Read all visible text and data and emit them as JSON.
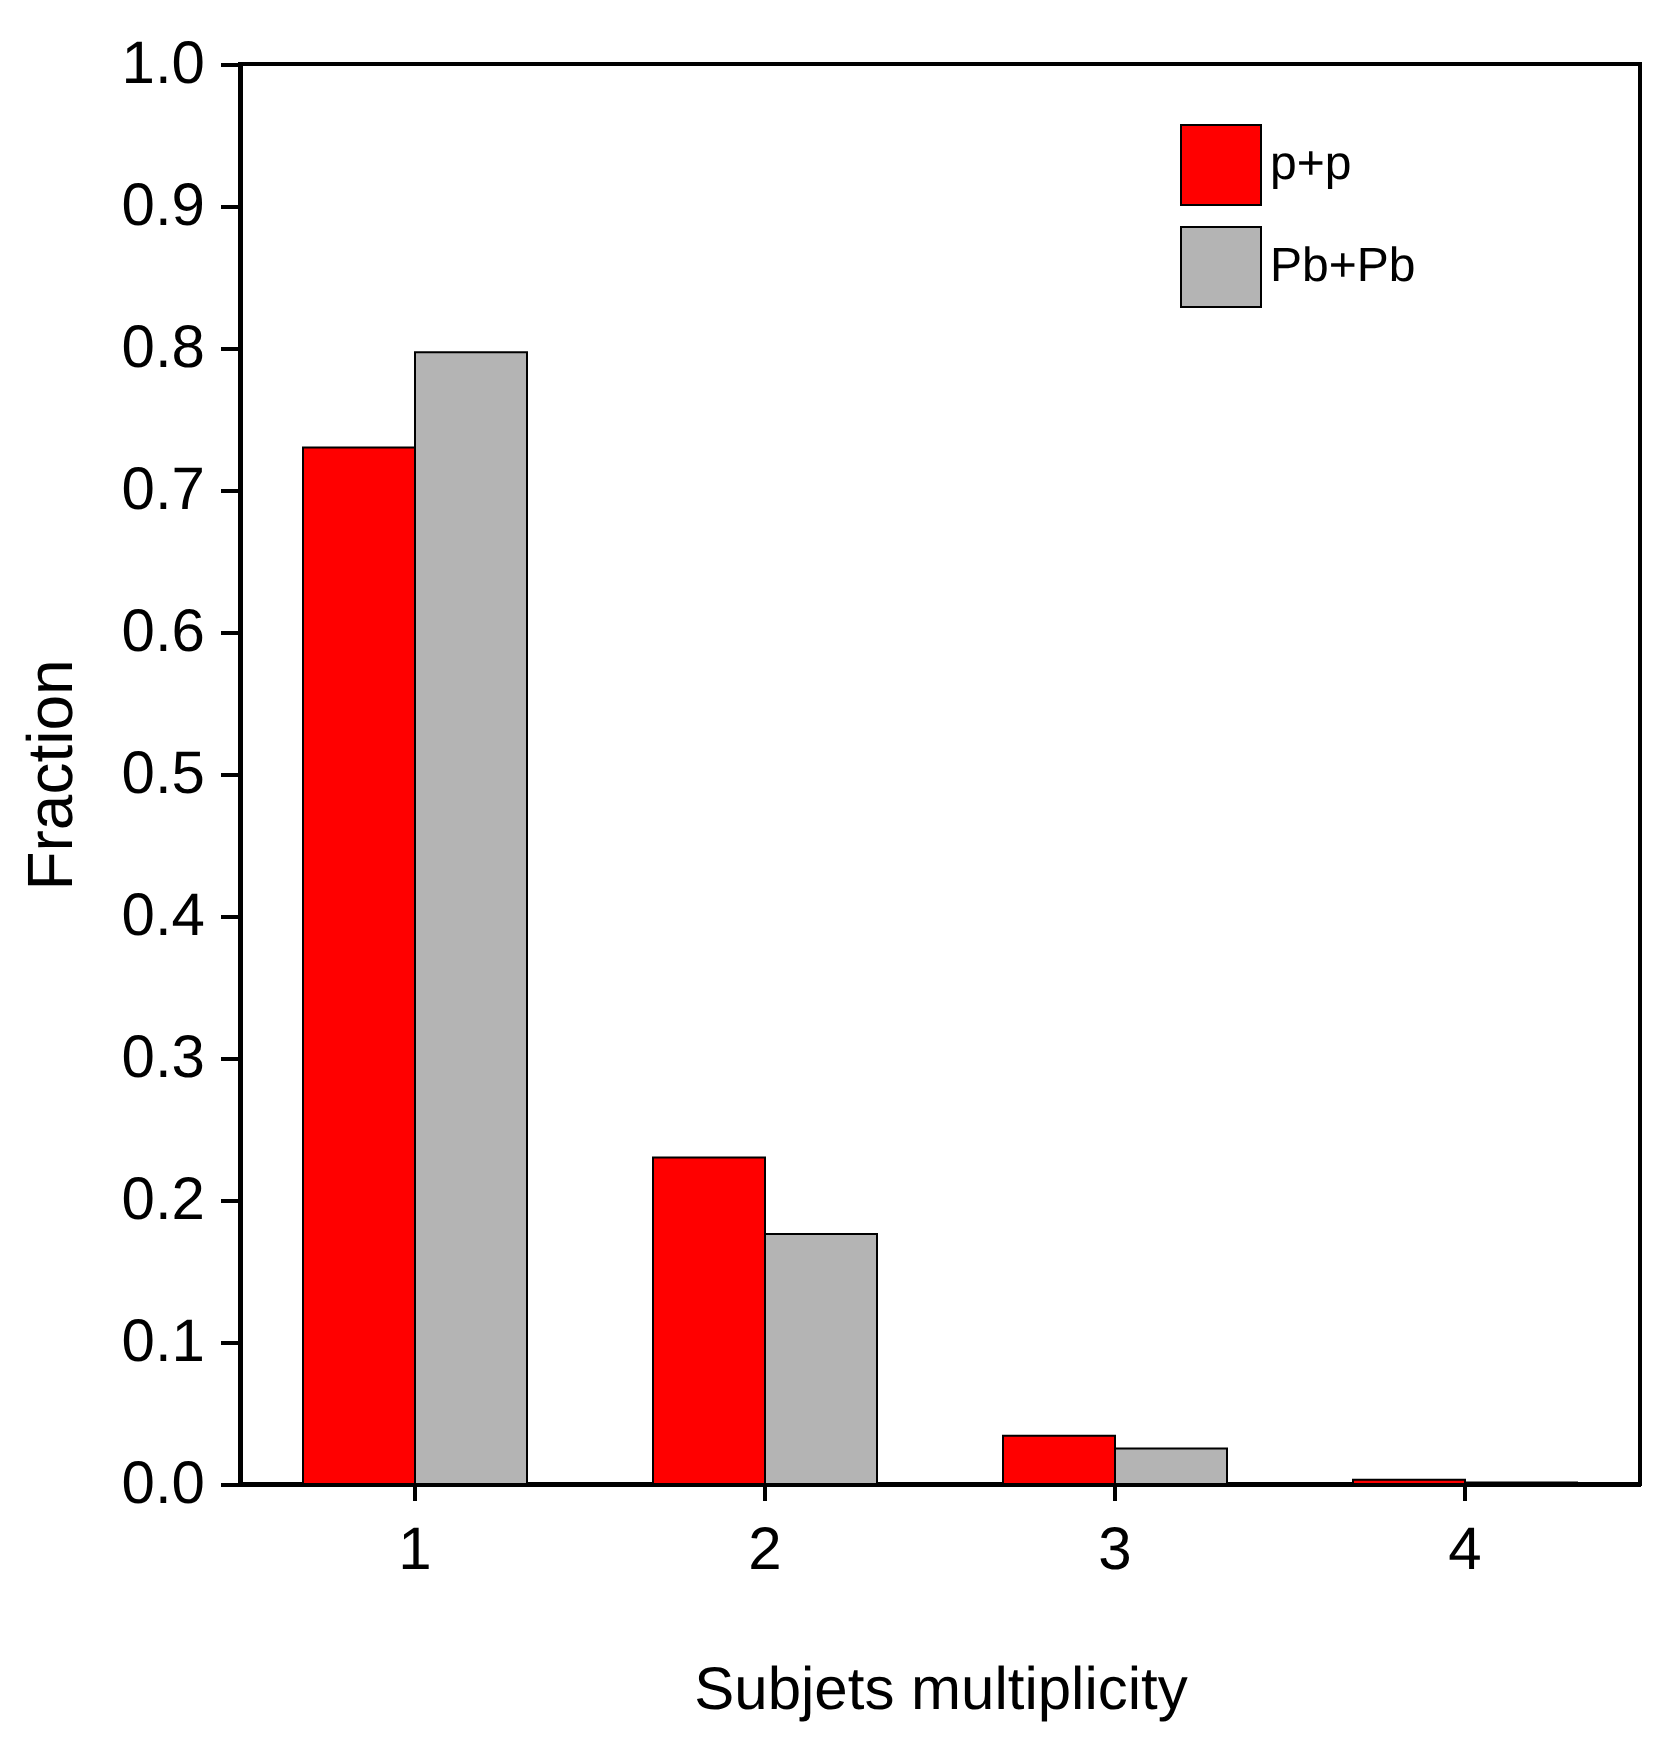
{
  "chart_data": {
    "type": "bar",
    "xlabel": "Subjets multiplicity",
    "ylabel": "Fraction",
    "categories": [
      "1",
      "2",
      "3",
      "4"
    ],
    "series": [
      {
        "name": "p+p",
        "color": "#ff0000",
        "values": [
          0.73,
          0.23,
          0.034,
          0.003
        ]
      },
      {
        "name": "Pb+Pb",
        "color": "#b4b4b4",
        "values": [
          0.797,
          0.176,
          0.025,
          0.001
        ]
      }
    ],
    "ylim": [
      0,
      1
    ],
    "yticks": [
      {
        "value": 0,
        "label": "0.0"
      },
      {
        "value": 0.1,
        "label": "0.1"
      },
      {
        "value": 0.2,
        "label": "0.2"
      },
      {
        "value": 0.3,
        "label": "0.3"
      },
      {
        "value": 0.4,
        "label": "0.4"
      },
      {
        "value": 0.5,
        "label": "0.5"
      },
      {
        "value": 0.6,
        "label": "0.6"
      },
      {
        "value": 0.7,
        "label": "0.7"
      },
      {
        "value": 0.8,
        "label": "0.8"
      },
      {
        "value": 0.9,
        "label": "0.9"
      },
      {
        "value": 1,
        "label": "1.0"
      }
    ],
    "grid": false,
    "legend": "top right"
  }
}
